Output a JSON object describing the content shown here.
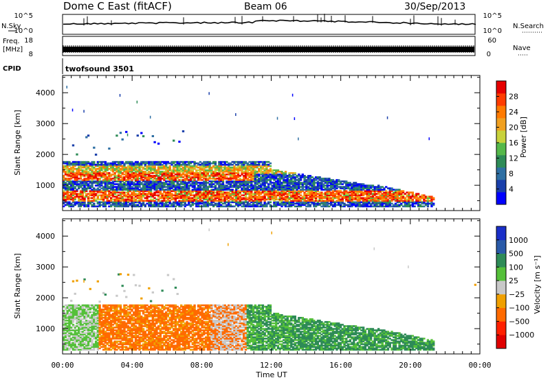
{
  "header": {
    "title": "Dome C East (fitACF)",
    "beam": "Beam 06",
    "date": "30/Sep/2013"
  },
  "panels": {
    "nsky_label": "N.Sky",
    "nsky_ticks": [
      "10^5",
      "10^0"
    ],
    "nsearch_label": "N.Search",
    "nsearch_ticks": [
      "10^5",
      "10^0"
    ],
    "freq_label_1": "Freq.",
    "freq_label_2": "[MHz]",
    "freq_ticks": [
      "18",
      "8"
    ],
    "nave_label": "Nave",
    "nave_ticks": [
      "60",
      "0"
    ],
    "cpid_label": "CPID",
    "cpid_value": "twofsound 3501"
  },
  "chart_data": [
    {
      "type": "heatmap",
      "name": "power",
      "ylabel": "Slant Range [km]",
      "xlabel": "Time UT",
      "y_ticks": [
        "1000",
        "2000",
        "3000",
        "4000"
      ],
      "x_ticks": [
        "00:00",
        "04:00",
        "08:00",
        "12:00",
        "16:00",
        "20:00",
        "00:00"
      ],
      "ylim": [
        180,
        4560
      ],
      "colorbar_label": "Power [dB]",
      "colorbar_ticks": [
        "4",
        "8",
        "12",
        "16",
        "20",
        "24",
        "28"
      ],
      "colors": [
        "#0000ff",
        "#1a3faa",
        "#2e6fa3",
        "#2e8b57",
        "#55b84a",
        "#c8d23c",
        "#f0a020",
        "#ff7a00",
        "#ff3c00",
        "#e60000"
      ]
    },
    {
      "type": "heatmap",
      "name": "velocity",
      "ylabel": "Slant Range [km]",
      "xlabel": "Time UT",
      "y_ticks": [
        "1000",
        "2000",
        "3000",
        "4000"
      ],
      "x_ticks": [
        "00:00",
        "04:00",
        "08:00",
        "12:00",
        "16:00",
        "20:00",
        "00:00"
      ],
      "ylim": [
        180,
        4560
      ],
      "colorbar_label": "Velocity [m s⁻¹]",
      "colorbar_ticks": [
        "1000",
        "500",
        "100",
        "25",
        "−25",
        "−100",
        "−500",
        "−1000"
      ],
      "colors": [
        "#1a2fc8",
        "#2a5aa8",
        "#2e8b57",
        "#55c03a",
        "#c8c8c8",
        "#f0a000",
        "#ff6a00",
        "#ff2000",
        "#e00000"
      ]
    }
  ]
}
